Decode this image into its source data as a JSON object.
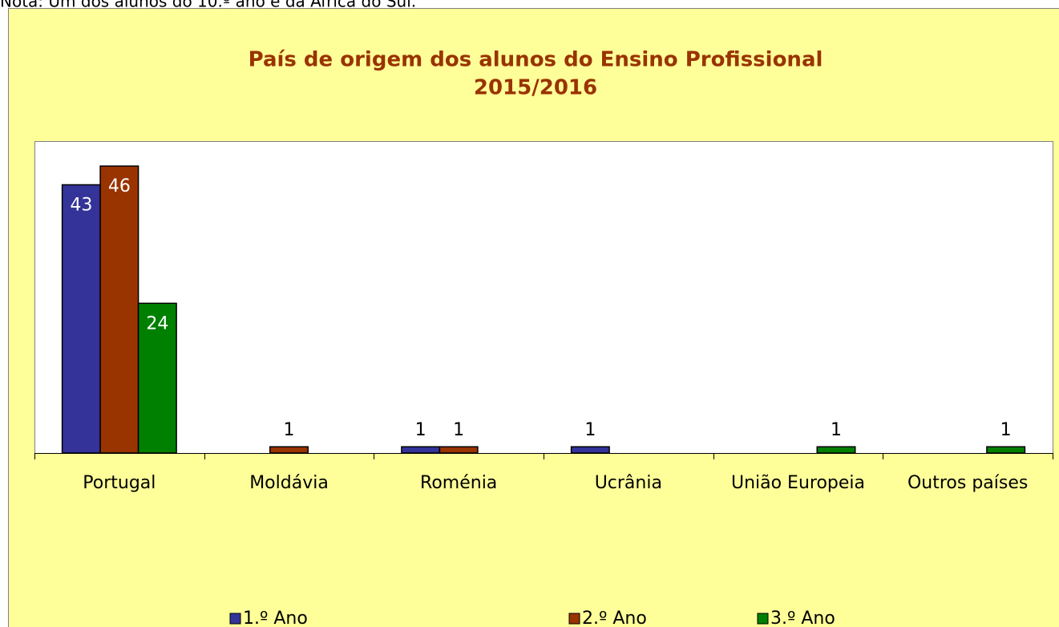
{
  "note": "Nota: Um dos alunos do 10.º ano é da África do Sul.",
  "chart_data": {
    "type": "bar",
    "title": [
      "País de origem dos alunos do Ensino Profissional",
      "2015/2016"
    ],
    "categories": [
      "Portugal",
      "Moldávia",
      "Roménia",
      "Ucrânia",
      "União Europeia",
      "Outros países"
    ],
    "series": [
      {
        "name": "1.º Ano",
        "color": "#333399",
        "values": [
          43,
          null,
          1,
          1,
          null,
          null
        ]
      },
      {
        "name": "2.º Ano",
        "color": "#993300",
        "values": [
          46,
          1,
          1,
          null,
          null,
          null
        ]
      },
      {
        "name": "3.º Ano",
        "color": "#008000",
        "values": [
          24,
          null,
          null,
          null,
          1,
          1
        ]
      }
    ],
    "ylim": [
      0,
      50
    ],
    "legend": "bottom"
  }
}
